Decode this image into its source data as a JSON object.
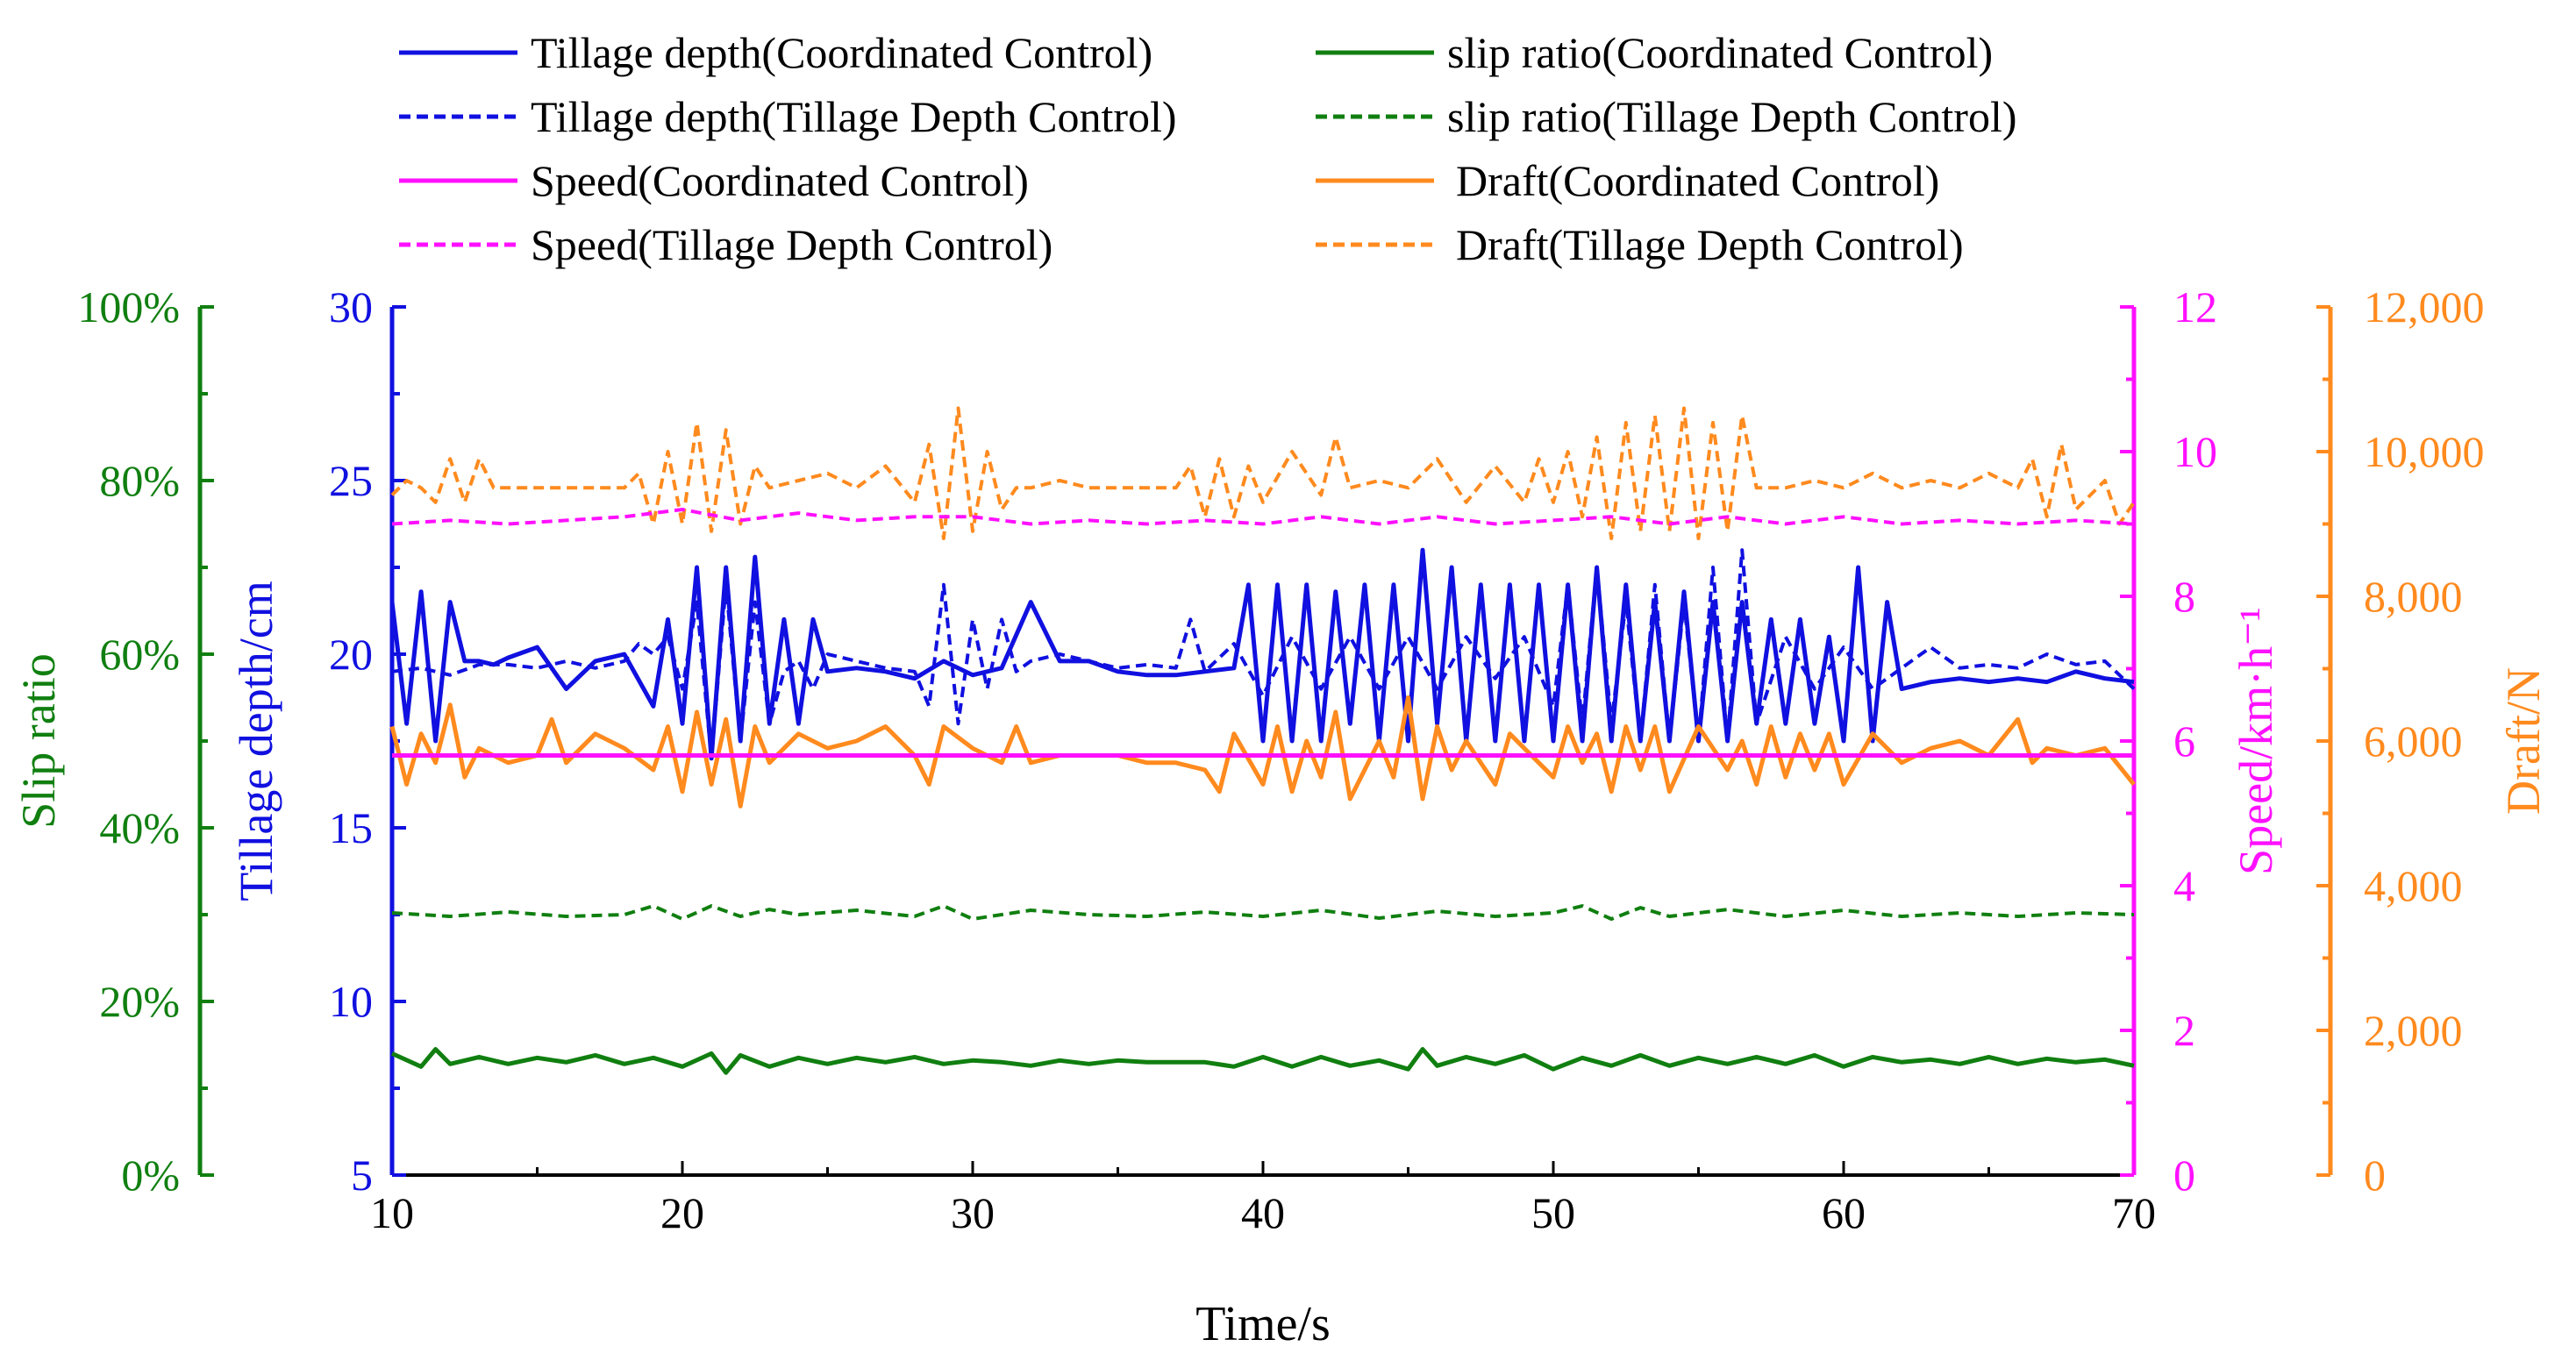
{
  "chart_data": {
    "type": "line",
    "xlabel": "Time/s",
    "xlim": [
      10,
      70
    ],
    "xticks": [
      "10",
      "20",
      "30",
      "40",
      "50",
      "60",
      "70"
    ],
    "axes": {
      "slip": {
        "label": "Slip ratio",
        "range": [
          0,
          100
        ],
        "ticks": [
          "0%",
          "20%",
          "40%",
          "60%",
          "80%",
          "100%"
        ],
        "color": "#107F10"
      },
      "depth": {
        "label": "Tillage depth/cm",
        "range": [
          5,
          30
        ],
        "ticks": [
          "5",
          "10",
          "15",
          "20",
          "25",
          "30"
        ],
        "color": "#1010E0"
      },
      "speed": {
        "label": "Speed/km·h⁻¹",
        "range": [
          0,
          12
        ],
        "ticks": [
          "0",
          "2",
          "4",
          "6",
          "8",
          "10",
          "12"
        ],
        "color": "#FF10FF"
      },
      "draft": {
        "label": "Draft/N",
        "range": [
          0,
          12000
        ],
        "ticks": [
          "0",
          "2,000",
          "4,000",
          "6,000",
          "8,000",
          "10,000",
          "12,000"
        ],
        "color": "#FF8A1E"
      }
    },
    "legend": {
      "placement": "top",
      "items": [
        {
          "label": "Tillage depth(Coordinated Control)",
          "color": "#1010E0",
          "dash": false
        },
        {
          "label": "slip ratio(Coordinated Control)",
          "color": "#107F10",
          "dash": false
        },
        {
          "label": "Tillage depth(Tillage Depth Control)",
          "color": "#1010E0",
          "dash": true
        },
        {
          "label": "slip ratio(Tillage Depth Control)",
          "color": "#107F10",
          "dash": true
        },
        {
          "label": "Speed(Coordinated Control)",
          "color": "#FF10FF",
          "dash": false
        },
        {
          "label": "Draft(Coordinated Control)",
          "color": "#FF8A1E",
          "dash": false
        },
        {
          "label": "Speed(Tillage Depth Control)",
          "color": "#FF10FF",
          "dash": true
        },
        {
          "label": "Draft(Tillage Depth Control)",
          "color": "#FF8A1E",
          "dash": true
        }
      ]
    },
    "series": [
      {
        "name": "Draft(Tillage Depth Control)",
        "axis": "draft",
        "color": "#FF8A1E",
        "dash": true,
        "x": [
          10,
          10.5,
          11,
          11.5,
          12,
          12.5,
          13,
          13.5,
          14,
          15,
          16,
          17,
          18,
          18.5,
          19,
          19.5,
          20,
          20.5,
          21,
          21.5,
          22,
          22.5,
          23,
          24,
          25,
          26,
          27,
          28,
          28.5,
          29,
          29.5,
          30,
          30.5,
          31,
          31.5,
          32,
          33,
          34,
          35,
          36,
          37,
          37.5,
          38,
          38.5,
          39,
          39.5,
          40,
          41,
          42,
          42.5,
          43,
          44,
          45,
          46,
          47,
          48,
          49,
          49.5,
          50,
          50.5,
          51,
          51.5,
          52,
          52.5,
          53,
          53.5,
          54,
          54.5,
          55,
          55.5,
          56,
          56.5,
          57,
          58,
          59,
          60,
          61,
          62,
          63,
          64,
          65,
          66,
          66.5,
          67,
          67.5,
          68,
          69,
          69.5,
          70
        ],
        "y": [
          9400,
          9600,
          9500,
          9300,
          9900,
          9300,
          9900,
          9500,
          9500,
          9500,
          9500,
          9500,
          9500,
          9700,
          9000,
          10000,
          9000,
          10400,
          8900,
          10300,
          9000,
          9800,
          9500,
          9600,
          9700,
          9500,
          9800,
          9300,
          10100,
          8800,
          10600,
          8900,
          10000,
          9200,
          9500,
          9500,
          9600,
          9500,
          9500,
          9500,
          9500,
          9800,
          9100,
          9900,
          9100,
          9800,
          9300,
          10000,
          9400,
          10200,
          9500,
          9600,
          9500,
          9900,
          9300,
          9800,
          9300,
          9900,
          9300,
          10000,
          9100,
          10200,
          8800,
          10400,
          8900,
          10500,
          8900,
          10600,
          8800,
          10400,
          8900,
          10500,
          9500,
          9500,
          9600,
          9500,
          9700,
          9500,
          9600,
          9500,
          9700,
          9500,
          9900,
          9100,
          10100,
          9200,
          9600,
          9000,
          9300
        ]
      },
      {
        "name": "Speed(Tillage Depth Control)",
        "axis": "speed",
        "color": "#FF10FF",
        "dash": true,
        "x": [
          10,
          12,
          14,
          16,
          18,
          20,
          22,
          24,
          26,
          28,
          30,
          32,
          34,
          36,
          38,
          40,
          42,
          44,
          46,
          48,
          50,
          52,
          54,
          56,
          58,
          60,
          62,
          64,
          66,
          68,
          70
        ],
        "y": [
          9.0,
          9.05,
          9.0,
          9.05,
          9.1,
          9.2,
          9.05,
          9.15,
          9.05,
          9.1,
          9.1,
          9.0,
          9.05,
          9.0,
          9.05,
          9.0,
          9.1,
          9.0,
          9.1,
          9.0,
          9.05,
          9.1,
          9.0,
          9.1,
          9.0,
          9.1,
          9.0,
          9.05,
          9.0,
          9.05,
          9.0
        ]
      },
      {
        "name": "Tillage depth(Tillage Depth Control)",
        "axis": "depth",
        "color": "#1010E0",
        "dash": true,
        "x": [
          10,
          11,
          12,
          13,
          14,
          15,
          16,
          17,
          18,
          18.5,
          19,
          19.5,
          20,
          20.5,
          21,
          21.5,
          22,
          22.5,
          23,
          23.5,
          24,
          24.5,
          25,
          26,
          27,
          28,
          28.5,
          29,
          29.5,
          30,
          30.5,
          31,
          31.5,
          32,
          33,
          34,
          35,
          36,
          37,
          37.5,
          38,
          39,
          40,
          41,
          42,
          43,
          44,
          45,
          46,
          47,
          48,
          49,
          50,
          50.5,
          51,
          51.5,
          52,
          52.5,
          53,
          53.5,
          54,
          54.5,
          55,
          55.5,
          56,
          56.5,
          57,
          58,
          59,
          60,
          61,
          62,
          63,
          64,
          65,
          66,
          67,
          68,
          69,
          70
        ],
        "y": [
          19.5,
          19.6,
          19.4,
          19.7,
          19.7,
          19.6,
          19.8,
          19.6,
          19.8,
          20.3,
          20.0,
          20.5,
          19.0,
          21.5,
          17.0,
          22.0,
          17.5,
          21.5,
          18.0,
          19.5,
          19.8,
          19.0,
          20.0,
          19.8,
          19.6,
          19.5,
          18.5,
          22.0,
          18.0,
          21.0,
          19.0,
          21.0,
          19.5,
          19.8,
          20.0,
          19.8,
          19.6,
          19.7,
          19.6,
          21.0,
          19.5,
          20.3,
          18.8,
          20.5,
          19.0,
          20.5,
          19.0,
          20.5,
          19.0,
          20.5,
          19.3,
          20.5,
          18.5,
          22.0,
          18.0,
          22.5,
          18.0,
          21.5,
          17.5,
          22.0,
          17.5,
          21.5,
          17.5,
          22.5,
          17.5,
          23.0,
          18.0,
          20.5,
          19.0,
          20.2,
          19.0,
          19.6,
          20.2,
          19.6,
          19.7,
          19.6,
          20.0,
          19.7,
          19.8,
          19.0
        ]
      },
      {
        "name": "slip ratio(Tillage Depth Control)",
        "axis": "slip",
        "color": "#107F10",
        "dash": true,
        "x": [
          10,
          12,
          14,
          16,
          18,
          19,
          20,
          21,
          22,
          23,
          24,
          26,
          28,
          29,
          30,
          32,
          34,
          36,
          38,
          40,
          42,
          44,
          46,
          48,
          50,
          51,
          52,
          53,
          54,
          56,
          58,
          60,
          62,
          64,
          66,
          68,
          70
        ],
        "y": [
          30.2,
          29.8,
          30.3,
          29.8,
          30.0,
          31.0,
          29.5,
          31.0,
          29.8,
          30.6,
          30.0,
          30.5,
          29.8,
          31.0,
          29.5,
          30.5,
          30.0,
          29.8,
          30.3,
          29.8,
          30.5,
          29.6,
          30.4,
          29.8,
          30.2,
          31.0,
          29.5,
          30.8,
          29.8,
          30.6,
          29.8,
          30.5,
          29.8,
          30.2,
          29.8,
          30.2,
          30.0
        ]
      },
      {
        "name": "Tillage depth(Coordinated Control)",
        "axis": "depth",
        "color": "#1010E0",
        "dash": false,
        "x": [
          10,
          10.5,
          11,
          11.5,
          12,
          12.5,
          13,
          13.5,
          14,
          15,
          16,
          17,
          18,
          19,
          19.5,
          20,
          20.5,
          21,
          21.5,
          22,
          22.5,
          23,
          23.5,
          24,
          24.5,
          25,
          26,
          27,
          28,
          29,
          30,
          31,
          32,
          33,
          34,
          35,
          36,
          37,
          38,
          39,
          39.5,
          40,
          40.5,
          41,
          41.5,
          42,
          42.5,
          43,
          43.5,
          44,
          44.5,
          45,
          45.5,
          46,
          46.5,
          47,
          47.5,
          48,
          48.5,
          49,
          49.5,
          50,
          50.5,
          51,
          51.5,
          52,
          52.5,
          53,
          53.5,
          54,
          54.5,
          55,
          55.5,
          56,
          56.5,
          57,
          57.5,
          58,
          58.5,
          59,
          59.5,
          60,
          60.5,
          61,
          61.5,
          62,
          63,
          64,
          65,
          66,
          67,
          68,
          69,
          70
        ],
        "y": [
          21.5,
          18.0,
          21.8,
          17.5,
          21.5,
          19.8,
          19.8,
          19.7,
          19.9,
          20.2,
          19.0,
          19.8,
          20.0,
          18.5,
          21.0,
          18.0,
          22.5,
          17.0,
          22.5,
          17.5,
          22.8,
          18.0,
          21.0,
          18.0,
          21.0,
          19.5,
          19.6,
          19.5,
          19.3,
          19.8,
          19.4,
          19.6,
          21.5,
          19.8,
          19.8,
          19.5,
          19.4,
          19.4,
          19.5,
          19.6,
          22.0,
          17.5,
          22.0,
          17.5,
          22.0,
          17.5,
          21.8,
          18.0,
          22.0,
          17.5,
          22.0,
          17.5,
          23.0,
          18.0,
          22.5,
          17.5,
          22.0,
          17.5,
          22.0,
          17.5,
          22.0,
          17.5,
          22.0,
          17.5,
          22.5,
          17.5,
          22.0,
          17.5,
          21.5,
          17.5,
          21.8,
          17.5,
          21.5,
          17.5,
          21.5,
          18.0,
          21.0,
          18.0,
          21.0,
          18.0,
          20.5,
          17.5,
          22.5,
          17.5,
          21.5,
          19.0,
          19.2,
          19.3,
          19.2,
          19.3,
          19.2,
          19.5,
          19.3,
          19.2
        ]
      },
      {
        "name": "Draft(Coordinated Control)",
        "axis": "draft",
        "color": "#FF8A1E",
        "dash": false,
        "x": [
          10,
          10.5,
          11,
          11.5,
          12,
          12.5,
          13,
          14,
          15,
          15.5,
          16,
          17,
          18,
          19,
          19.5,
          20,
          20.5,
          21,
          21.5,
          22,
          22.5,
          23,
          24,
          25,
          26,
          27,
          28,
          28.5,
          29,
          30,
          31,
          31.5,
          32,
          33,
          34,
          35,
          36,
          37,
          38,
          38.5,
          39,
          40,
          40.5,
          41,
          41.5,
          42,
          42.5,
          43,
          44,
          44.5,
          45,
          45.5,
          46,
          46.5,
          47,
          48,
          48.5,
          49,
          50,
          50.5,
          51,
          51.5,
          52,
          52.5,
          53,
          53.5,
          54,
          55,
          56,
          56.5,
          57,
          57.5,
          58,
          58.5,
          59,
          59.5,
          60,
          61,
          62,
          63,
          64,
          65,
          66,
          66.5,
          67,
          68,
          69,
          70
        ],
        "y": [
          6200,
          5400,
          6100,
          5700,
          6500,
          5500,
          5900,
          5700,
          5800,
          6300,
          5700,
          6100,
          5900,
          5600,
          6200,
          5300,
          6400,
          5400,
          6300,
          5100,
          6200,
          5700,
          6100,
          5900,
          6000,
          6200,
          5800,
          5400,
          6200,
          5900,
          5700,
          6200,
          5700,
          5800,
          5800,
          5800,
          5700,
          5700,
          5600,
          5300,
          6100,
          5400,
          6200,
          5300,
          6000,
          5500,
          6400,
          5200,
          6000,
          5500,
          6600,
          5200,
          6200,
          5600,
          6000,
          5400,
          6100,
          5900,
          5500,
          6200,
          5700,
          6100,
          5300,
          6200,
          5600,
          6200,
          5300,
          6200,
          5600,
          6000,
          5400,
          6200,
          5500,
          6100,
          5600,
          6100,
          5400,
          6100,
          5700,
          5900,
          6000,
          5800,
          6300,
          5700,
          5900,
          5800,
          5900,
          5400
        ]
      },
      {
        "name": "Speed(Coordinated Control)",
        "axis": "speed",
        "color": "#FF10FF",
        "dash": false,
        "x": [
          10,
          70
        ],
        "y": [
          5.8,
          5.8
        ]
      },
      {
        "name": "slip ratio(Coordinated Control)",
        "axis": "slip",
        "color": "#107F10",
        "dash": false,
        "x": [
          10,
          11,
          11.5,
          12,
          13,
          14,
          15,
          16,
          17,
          18,
          19,
          20,
          21,
          21.5,
          22,
          23,
          24,
          25,
          26,
          27,
          28,
          29,
          30,
          31,
          32,
          33,
          34,
          35,
          36,
          37,
          38,
          39,
          40,
          41,
          42,
          43,
          44,
          45,
          45.5,
          46,
          47,
          48,
          49,
          50,
          51,
          52,
          53,
          54,
          55,
          56,
          57,
          58,
          59,
          60,
          61,
          62,
          63,
          64,
          65,
          66,
          67,
          68,
          69,
          70
        ],
        "y": [
          14.0,
          12.5,
          14.5,
          12.8,
          13.6,
          12.8,
          13.5,
          13.0,
          13.8,
          12.8,
          13.5,
          12.5,
          14.0,
          11.8,
          13.8,
          12.5,
          13.5,
          12.8,
          13.5,
          13.0,
          13.6,
          12.8,
          13.2,
          13.0,
          12.6,
          13.2,
          12.8,
          13.2,
          13.0,
          13.0,
          13.0,
          12.5,
          13.6,
          12.5,
          13.6,
          12.6,
          13.2,
          12.2,
          14.5,
          12.6,
          13.6,
          12.8,
          13.8,
          12.2,
          13.5,
          12.6,
          13.8,
          12.6,
          13.5,
          12.8,
          13.6,
          12.8,
          13.8,
          12.5,
          13.6,
          13.0,
          13.3,
          12.8,
          13.6,
          12.8,
          13.4,
          13.0,
          13.3,
          12.6
        ]
      }
    ]
  }
}
